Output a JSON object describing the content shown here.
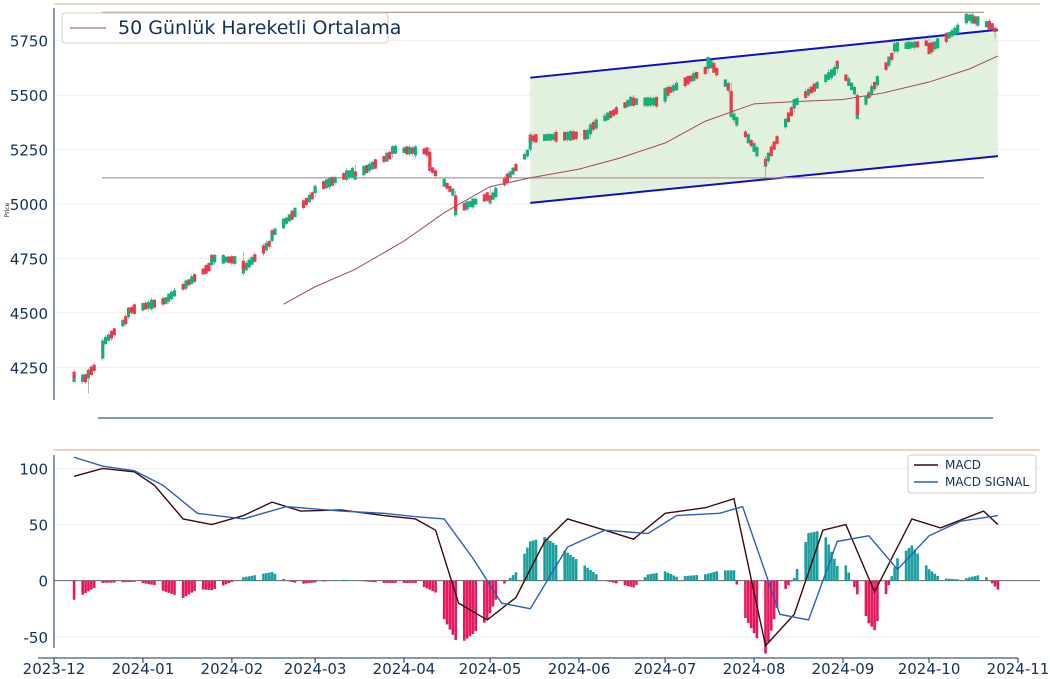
{
  "chart_data": [
    {
      "type": "candlestick",
      "panel": "price",
      "ylabel": "Price",
      "ylim": [
        4100,
        5900
      ],
      "yticks": [
        4250,
        4500,
        4750,
        5000,
        5250,
        5500,
        5750
      ],
      "legend": {
        "position": "top-left",
        "entries": [
          "50 Günlük Hareketli Ortalama"
        ]
      },
      "series_ohlc_approx": [
        {
          "date": "2023-12-08",
          "o": 4230,
          "h": 4240,
          "l": 4190,
          "c": 4200
        },
        {
          "date": "2023-12-13",
          "o": 4200,
          "h": 4240,
          "l": 4130,
          "c": 4220
        },
        {
          "date": "2023-12-18",
          "o": 4290,
          "h": 4370,
          "l": 4280,
          "c": 4360
        },
        {
          "date": "2023-12-27",
          "o": 4480,
          "h": 4520,
          "l": 4470,
          "c": 4510
        },
        {
          "date": "2024-01-10",
          "o": 4560,
          "h": 4580,
          "l": 4540,
          "c": 4570
        },
        {
          "date": "2024-01-25",
          "o": 4720,
          "h": 4760,
          "l": 4700,
          "c": 4750
        },
        {
          "date": "2024-02-05",
          "o": 4740,
          "h": 4780,
          "l": 4690,
          "c": 4700
        },
        {
          "date": "2024-02-15",
          "o": 4830,
          "h": 4870,
          "l": 4820,
          "c": 4860
        },
        {
          "date": "2024-03-01",
          "o": 5050,
          "h": 5080,
          "l": 5030,
          "c": 5070
        },
        {
          "date": "2024-03-15",
          "o": 5150,
          "h": 5180,
          "l": 5110,
          "c": 5130
        },
        {
          "date": "2024-03-28",
          "o": 5230,
          "h": 5260,
          "l": 5210,
          "c": 5250
        },
        {
          "date": "2024-04-10",
          "o": 5240,
          "h": 5260,
          "l": 5150,
          "c": 5170
        },
        {
          "date": "2024-04-19",
          "o": 5040,
          "h": 5060,
          "l": 4960,
          "c": 4970
        },
        {
          "date": "2024-05-01",
          "o": 5040,
          "h": 5080,
          "l": 5000,
          "c": 5020
        },
        {
          "date": "2024-05-15",
          "o": 5250,
          "h": 5310,
          "l": 5240,
          "c": 5300
        },
        {
          "date": "2024-06-05",
          "o": 5320,
          "h": 5360,
          "l": 5300,
          "c": 5350
        },
        {
          "date": "2024-06-20",
          "o": 5480,
          "h": 5500,
          "l": 5460,
          "c": 5470
        },
        {
          "date": "2024-07-01",
          "o": 5470,
          "h": 5520,
          "l": 5460,
          "c": 5510
        },
        {
          "date": "2024-07-16",
          "o": 5620,
          "h": 5670,
          "l": 5600,
          "c": 5660
        },
        {
          "date": "2024-07-24",
          "o": 5520,
          "h": 5560,
          "l": 5410,
          "c": 5420
        },
        {
          "date": "2024-08-05",
          "o": 5180,
          "h": 5220,
          "l": 5120,
          "c": 5190
        },
        {
          "date": "2024-08-15",
          "o": 5450,
          "h": 5470,
          "l": 5420,
          "c": 5460
        },
        {
          "date": "2024-08-30",
          "o": 5620,
          "h": 5650,
          "l": 5600,
          "c": 5640
        },
        {
          "date": "2024-09-06",
          "o": 5500,
          "h": 5510,
          "l": 5400,
          "c": 5410
        },
        {
          "date": "2024-09-19",
          "o": 5700,
          "h": 5730,
          "l": 5690,
          "c": 5720
        },
        {
          "date": "2024-10-01",
          "o": 5740,
          "h": 5780,
          "l": 5700,
          "c": 5710
        },
        {
          "date": "2024-10-14",
          "o": 5830,
          "h": 5870,
          "l": 5820,
          "c": 5860
        },
        {
          "date": "2024-10-24",
          "o": 5810,
          "h": 5820,
          "l": 5760,
          "c": 5790
        }
      ],
      "moving_average_50": {
        "name": "50 Günlük Hareketli Ortalama",
        "points": [
          [
            "2024-02-19",
            4540
          ],
          [
            "2024-03-01",
            4620
          ],
          [
            "2024-03-15",
            4700
          ],
          [
            "2024-04-01",
            4830
          ],
          [
            "2024-04-15",
            4960
          ],
          [
            "2024-05-01",
            5080
          ],
          [
            "2024-05-15",
            5120
          ],
          [
            "2024-06-01",
            5160
          ],
          [
            "2024-06-15",
            5210
          ],
          [
            "2024-07-01",
            5280
          ],
          [
            "2024-07-15",
            5380
          ],
          [
            "2024-08-01",
            5460
          ],
          [
            "2024-08-15",
            5470
          ],
          [
            "2024-09-01",
            5480
          ],
          [
            "2024-09-15",
            5510
          ],
          [
            "2024-10-01",
            5560
          ],
          [
            "2024-10-15",
            5620
          ],
          [
            "2024-10-25",
            5680
          ]
        ]
      },
      "horizontal_lines": [
        5120,
        5880
      ],
      "channel": {
        "upper": [
          [
            "2024-05-15",
            5580
          ],
          [
            "2024-10-25",
            5800
          ]
        ],
        "lower": [
          [
            "2024-05-15",
            5005
          ],
          [
            "2024-10-25",
            5220
          ]
        ]
      }
    },
    {
      "type": "line+bar",
      "panel": "macd",
      "ylim": [
        -60,
        112
      ],
      "yticks": [
        -50,
        0,
        50,
        100
      ],
      "xticks": [
        "2023-12",
        "2024-01",
        "2024-02",
        "2024-03",
        "2024-04",
        "2024-05",
        "2024-06",
        "2024-07",
        "2024-08",
        "2024-09",
        "2024-10",
        "2024-11"
      ],
      "legend": {
        "position": "top-right",
        "entries": [
          "MACD",
          "MACD SIGNAL"
        ]
      },
      "series": [
        {
          "name": "MACD",
          "color": "#3b0a0a",
          "points": [
            [
              "2023-12-08",
              93
            ],
            [
              "2023-12-18",
              100
            ],
            [
              "2023-12-29",
              97
            ],
            [
              "2024-01-05",
              85
            ],
            [
              "2024-01-15",
              55
            ],
            [
              "2024-01-25",
              50
            ],
            [
              "2024-02-05",
              58
            ],
            [
              "2024-02-15",
              70
            ],
            [
              "2024-02-25",
              62
            ],
            [
              "2024-03-10",
              63
            ],
            [
              "2024-03-25",
              58
            ],
            [
              "2024-04-05",
              55
            ],
            [
              "2024-04-12",
              45
            ],
            [
              "2024-04-20",
              -20
            ],
            [
              "2024-04-30",
              -35
            ],
            [
              "2024-05-10",
              -15
            ],
            [
              "2024-05-20",
              35
            ],
            [
              "2024-05-28",
              55
            ],
            [
              "2024-06-10",
              45
            ],
            [
              "2024-06-20",
              37
            ],
            [
              "2024-07-01",
              60
            ],
            [
              "2024-07-15",
              65
            ],
            [
              "2024-07-25",
              73
            ],
            [
              "2024-08-05",
              -58
            ],
            [
              "2024-08-15",
              -30
            ],
            [
              "2024-08-25",
              45
            ],
            [
              "2024-09-02",
              50
            ],
            [
              "2024-09-12",
              -10
            ],
            [
              "2024-09-25",
              55
            ],
            [
              "2024-10-05",
              47
            ],
            [
              "2024-10-20",
              62
            ],
            [
              "2024-10-25",
              50
            ]
          ]
        },
        {
          "name": "MACD SIGNAL",
          "color": "#2a5fbd",
          "points": [
            [
              "2023-12-08",
              110
            ],
            [
              "2023-12-18",
              102
            ],
            [
              "2023-12-29",
              98
            ],
            [
              "2024-01-08",
              85
            ],
            [
              "2024-01-20",
              60
            ],
            [
              "2024-02-05",
              55
            ],
            [
              "2024-02-20",
              66
            ],
            [
              "2024-03-10",
              62
            ],
            [
              "2024-03-25",
              60
            ],
            [
              "2024-04-05",
              57
            ],
            [
              "2024-04-15",
              55
            ],
            [
              "2024-04-25",
              20
            ],
            [
              "2024-05-05",
              -20
            ],
            [
              "2024-05-15",
              -25
            ],
            [
              "2024-05-28",
              30
            ],
            [
              "2024-06-10",
              45
            ],
            [
              "2024-06-25",
              42
            ],
            [
              "2024-07-05",
              58
            ],
            [
              "2024-07-20",
              60
            ],
            [
              "2024-07-28",
              66
            ],
            [
              "2024-08-10",
              -30
            ],
            [
              "2024-08-20",
              -35
            ],
            [
              "2024-08-30",
              35
            ],
            [
              "2024-09-10",
              40
            ],
            [
              "2024-09-20",
              10
            ],
            [
              "2024-10-01",
              40
            ],
            [
              "2024-10-12",
              53
            ],
            [
              "2024-10-25",
              58
            ]
          ]
        }
      ],
      "histogram_color_positive": "#1a9e9e",
      "histogram_color_negative": "#e8175d"
    }
  ]
}
